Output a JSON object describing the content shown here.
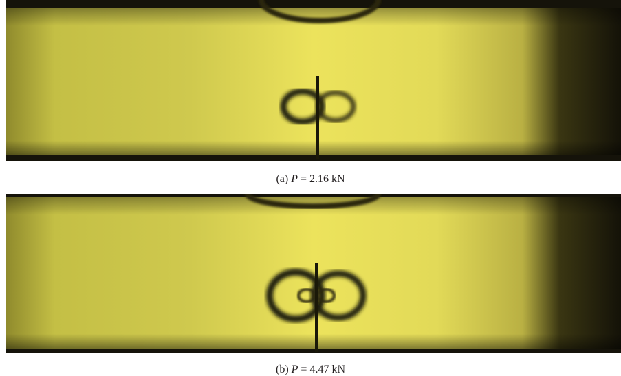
{
  "figure": {
    "panels": [
      {
        "label": "(a)",
        "symbol": "P",
        "value": "= 2.16 kN"
      },
      {
        "label": "(b)",
        "symbol": "P",
        "value": "= 4.47 kN"
      }
    ]
  }
}
